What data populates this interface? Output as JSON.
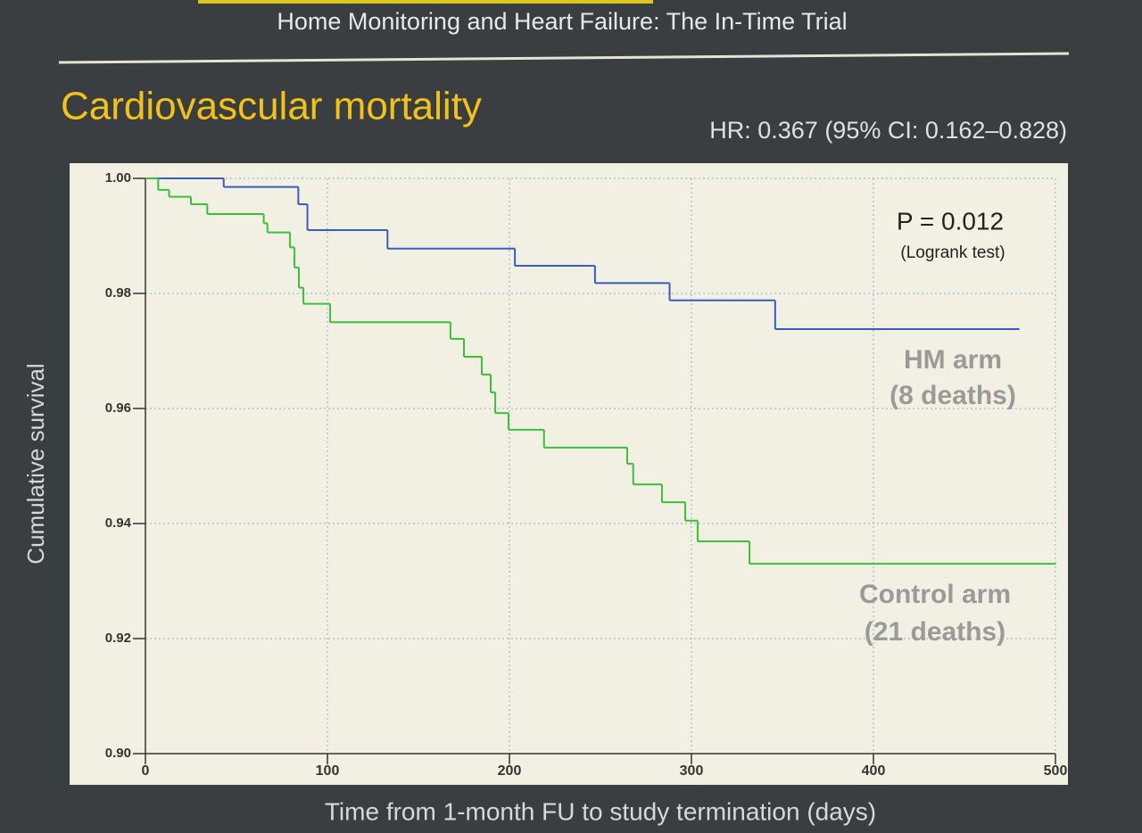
{
  "header": {
    "title": "Home Monitoring and Heart Failure: The In-Time Trial"
  },
  "chart_data": {
    "type": "step",
    "title": "Cardiovascular mortality",
    "subtitle": "HR: 0.367  (95% CI: 0.162–0.828)",
    "annotation": {
      "text": "P = 0.012",
      "note": "(Logrank test)"
    },
    "x_label": "Time from 1-month FU to study termination (days)",
    "y_label": "Cumulative survival",
    "xlim": [
      0,
      500
    ],
    "ylim": [
      0.9,
      1.0
    ],
    "xticks": [
      0,
      100,
      200,
      300,
      400,
      500
    ],
    "yticks": [
      {
        "value": 0.9,
        "label": "0.90"
      },
      {
        "value": 0.92,
        "label": "0.92"
      },
      {
        "value": 0.94,
        "label": "0.94"
      },
      {
        "value": 0.96,
        "label": "0.96"
      },
      {
        "value": 0.98,
        "label": "0.98"
      },
      {
        "value": 1.0,
        "label": "1.00"
      }
    ],
    "grid": true,
    "series": [
      {
        "name": "HM arm",
        "note": "(8 deaths)",
        "color": "#3a5cc0",
        "x": [
          0,
          43,
          84,
          89,
          133,
          203,
          247,
          288,
          346,
          480
        ],
        "values": [
          1.0,
          0.9985,
          0.9955,
          0.991,
          0.9878,
          0.9848,
          0.9818,
          0.9788,
          0.9738,
          0.9738
        ]
      },
      {
        "name": "Control arm",
        "note": "(21 deaths)",
        "color": "#3cbf3c",
        "x": [
          0,
          7,
          13,
          25,
          34,
          65,
          67,
          79.4,
          81.9,
          84.3,
          86.8,
          101.5,
          167.6,
          175,
          184.8,
          189.7,
          192.2,
          199.5,
          219,
          264.7,
          268,
          283.8,
          296.6,
          303.4,
          331.9,
          500
        ],
        "values": [
          1.0,
          0.998,
          0.9968,
          0.9955,
          0.9938,
          0.9922,
          0.9906,
          0.988,
          0.9845,
          0.981,
          0.9782,
          0.975,
          0.9721,
          0.969,
          0.9659,
          0.9628,
          0.9592,
          0.9563,
          0.9532,
          0.9504,
          0.9468,
          0.9437,
          0.9405,
          0.9369,
          0.933,
          0.933
        ]
      }
    ]
  }
}
